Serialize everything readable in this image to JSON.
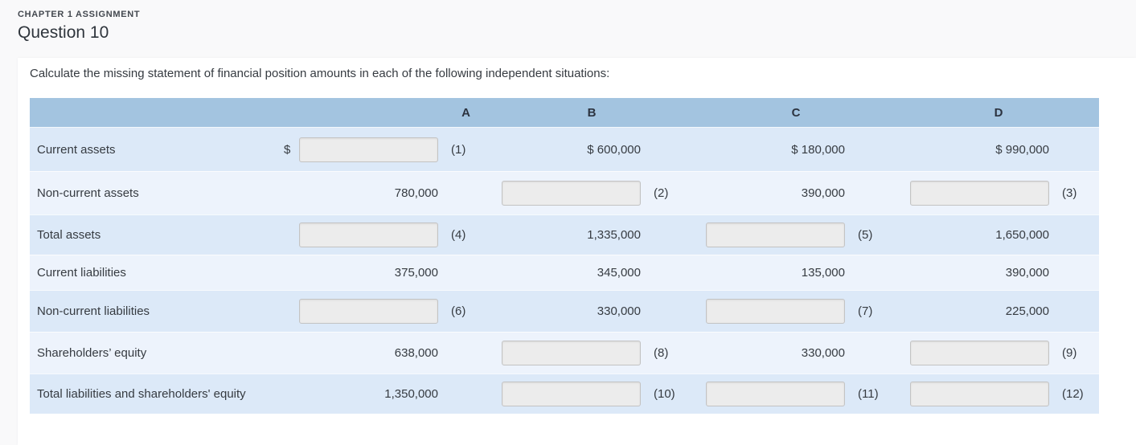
{
  "page": {
    "eyebrow": "CHAPTER 1 ASSIGNMENT",
    "title": "Question 10",
    "instruction": "Calculate the missing statement of financial position amounts in each of the following independent situations:"
  },
  "table": {
    "columns": [
      "A",
      "B",
      "C",
      "D"
    ],
    "rows": [
      {
        "label": "Current assets",
        "cells": [
          {
            "type": "input",
            "prefix": "$",
            "value": "",
            "note": "(1)"
          },
          {
            "type": "value",
            "value": "$ 600,000"
          },
          {
            "type": "value",
            "value": "$ 180,000"
          },
          {
            "type": "value",
            "value": "$ 990,000"
          }
        ]
      },
      {
        "label": "Non-current assets",
        "cells": [
          {
            "type": "value",
            "value": "780,000"
          },
          {
            "type": "input",
            "value": "",
            "note": "(2)"
          },
          {
            "type": "value",
            "value": "390,000"
          },
          {
            "type": "input",
            "value": "",
            "note": "(3)"
          }
        ]
      },
      {
        "label": "Total assets",
        "cells": [
          {
            "type": "input",
            "value": "",
            "note": "(4)"
          },
          {
            "type": "value",
            "value": "1,335,000"
          },
          {
            "type": "input",
            "value": "",
            "note": "(5)"
          },
          {
            "type": "value",
            "value": "1,650,000"
          }
        ]
      },
      {
        "label": "Current liabilities",
        "cells": [
          {
            "type": "value",
            "value": "375,000"
          },
          {
            "type": "value",
            "value": "345,000"
          },
          {
            "type": "value",
            "value": "135,000"
          },
          {
            "type": "value",
            "value": "390,000"
          }
        ]
      },
      {
        "label": "Non-current liabilities",
        "cells": [
          {
            "type": "input",
            "value": "",
            "note": "(6)"
          },
          {
            "type": "value",
            "value": "330,000"
          },
          {
            "type": "input",
            "value": "",
            "note": "(7)"
          },
          {
            "type": "value",
            "value": "225,000"
          }
        ]
      },
      {
        "label": "Shareholders’ equity",
        "cells": [
          {
            "type": "value",
            "value": "638,000"
          },
          {
            "type": "input",
            "value": "",
            "note": "(8)"
          },
          {
            "type": "value",
            "value": "330,000"
          },
          {
            "type": "input",
            "value": "",
            "note": "(9)"
          }
        ]
      },
      {
        "label": "Total liabilities and shareholders' equity",
        "cells": [
          {
            "type": "value",
            "value": "1,350,000"
          },
          {
            "type": "input",
            "value": "",
            "note": "(10)"
          },
          {
            "type": "input",
            "value": "",
            "note": "(11)"
          },
          {
            "type": "input",
            "value": "",
            "note": "(12)"
          }
        ]
      }
    ]
  },
  "colors": {
    "page_bg": "#f9f9fa",
    "card_bg": "#ffffff",
    "table_header_bg": "#a3c4e0",
    "row_alt_dark": "#dce9f8",
    "row_alt_light": "#edf3fc",
    "input_bg": "#ececec",
    "text": "#363b41"
  }
}
